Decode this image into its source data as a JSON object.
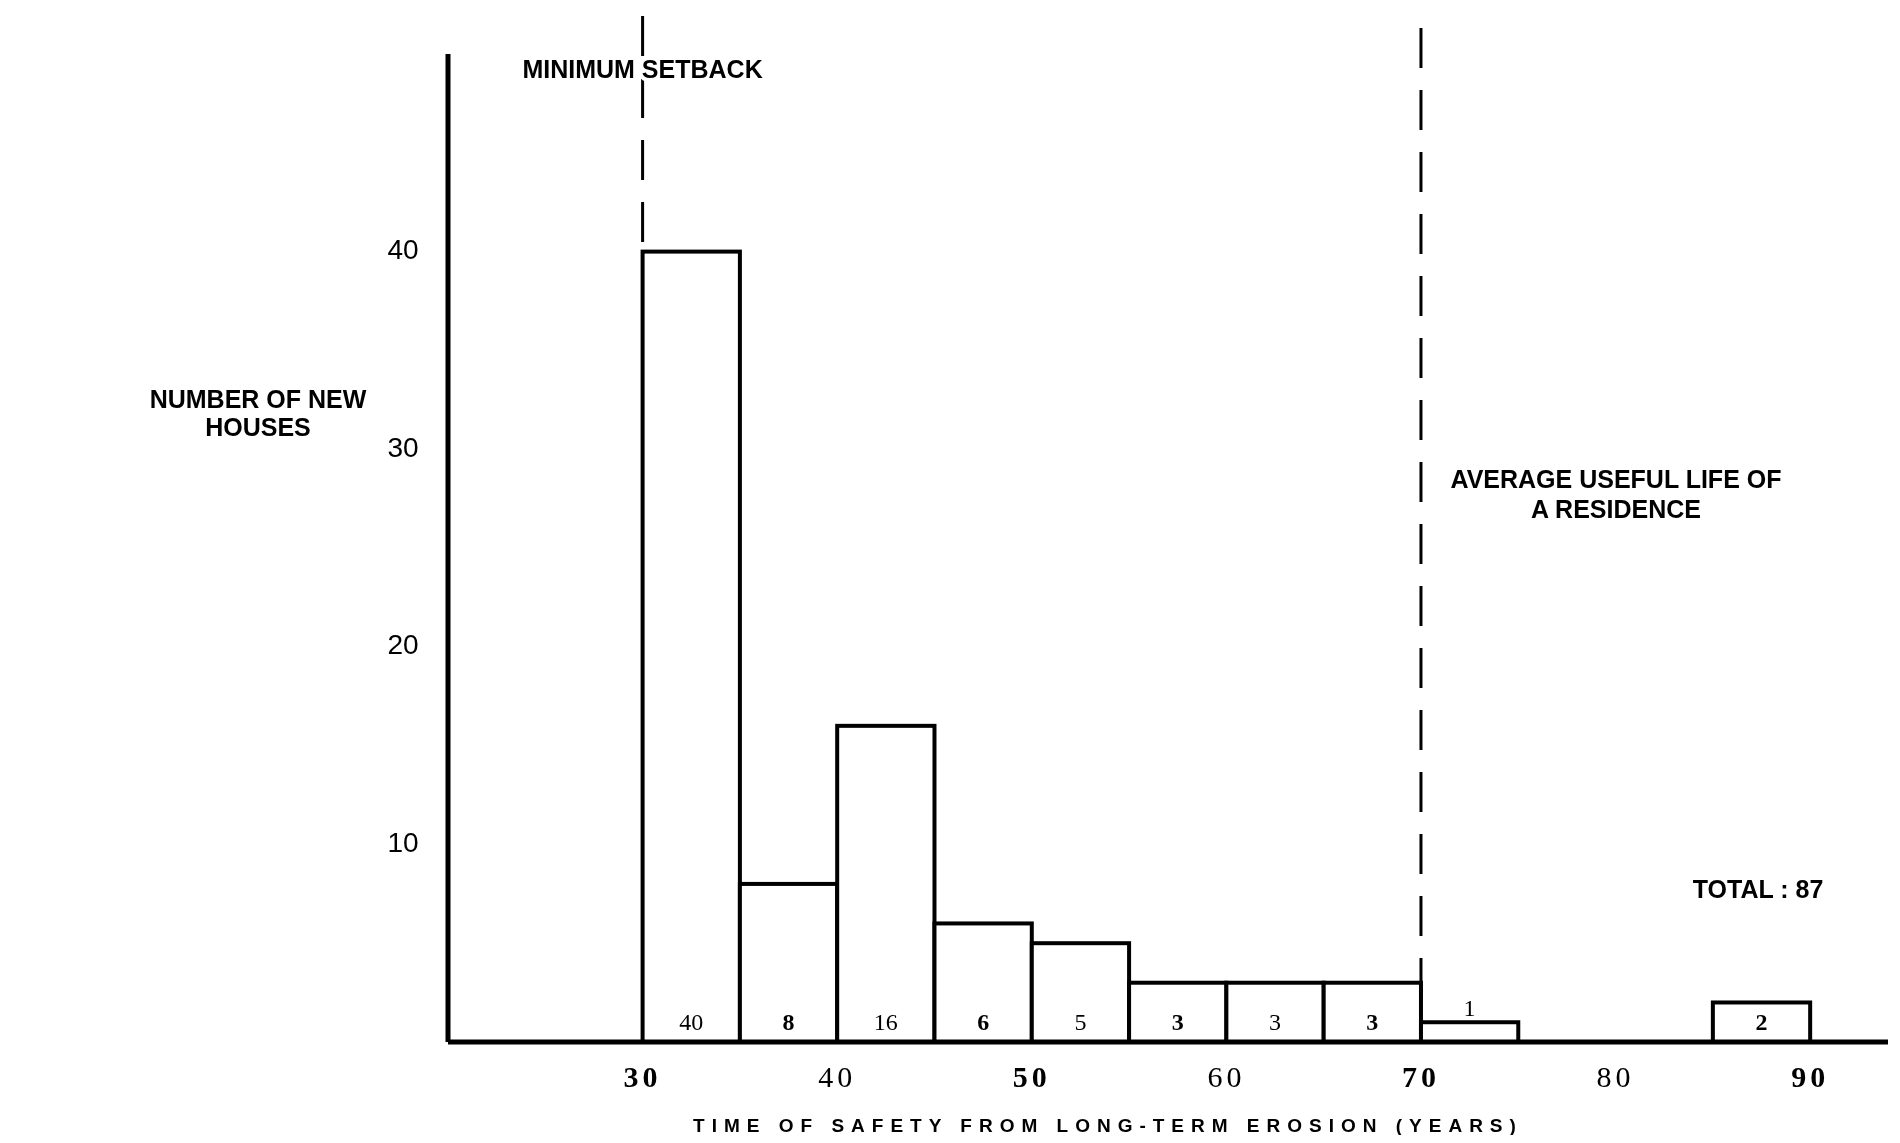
{
  "chart_data": {
    "type": "histogram",
    "xlabel": "TIME OF SAFETY FROM LONG-TERM EROSION (YEARS)",
    "ylabel": "NUMBER OF NEW HOUSES",
    "bins": [
      30,
      35,
      40,
      45,
      50,
      55,
      60,
      65,
      70,
      75,
      80,
      85,
      90
    ],
    "values": [
      40,
      8,
      16,
      6,
      5,
      3,
      3,
      3,
      1,
      0,
      0,
      2
    ],
    "color": "#ffffff",
    "value_labels": [
      "40",
      "8",
      "16",
      "6",
      "5",
      "3",
      "3",
      "3",
      "1",
      null,
      null,
      "2"
    ],
    "xlim": [
      20,
      94
    ],
    "xticks": [
      30,
      40,
      50,
      60,
      70,
      80,
      90
    ],
    "ylim": [
      0,
      50
    ],
    "yticks": [
      10,
      20,
      30,
      40
    ],
    "ref_lines": [
      {
        "axis": "x",
        "value": 30,
        "label": "MINIMUM SETBACK",
        "line_style": "dashed"
      },
      {
        "axis": "x",
        "value": 70,
        "label": "AVERAGE USEFUL LIFE OF A RESIDENCE",
        "line_style": "dashed"
      }
    ],
    "annotations": [
      "TOTAL : 87"
    ]
  }
}
